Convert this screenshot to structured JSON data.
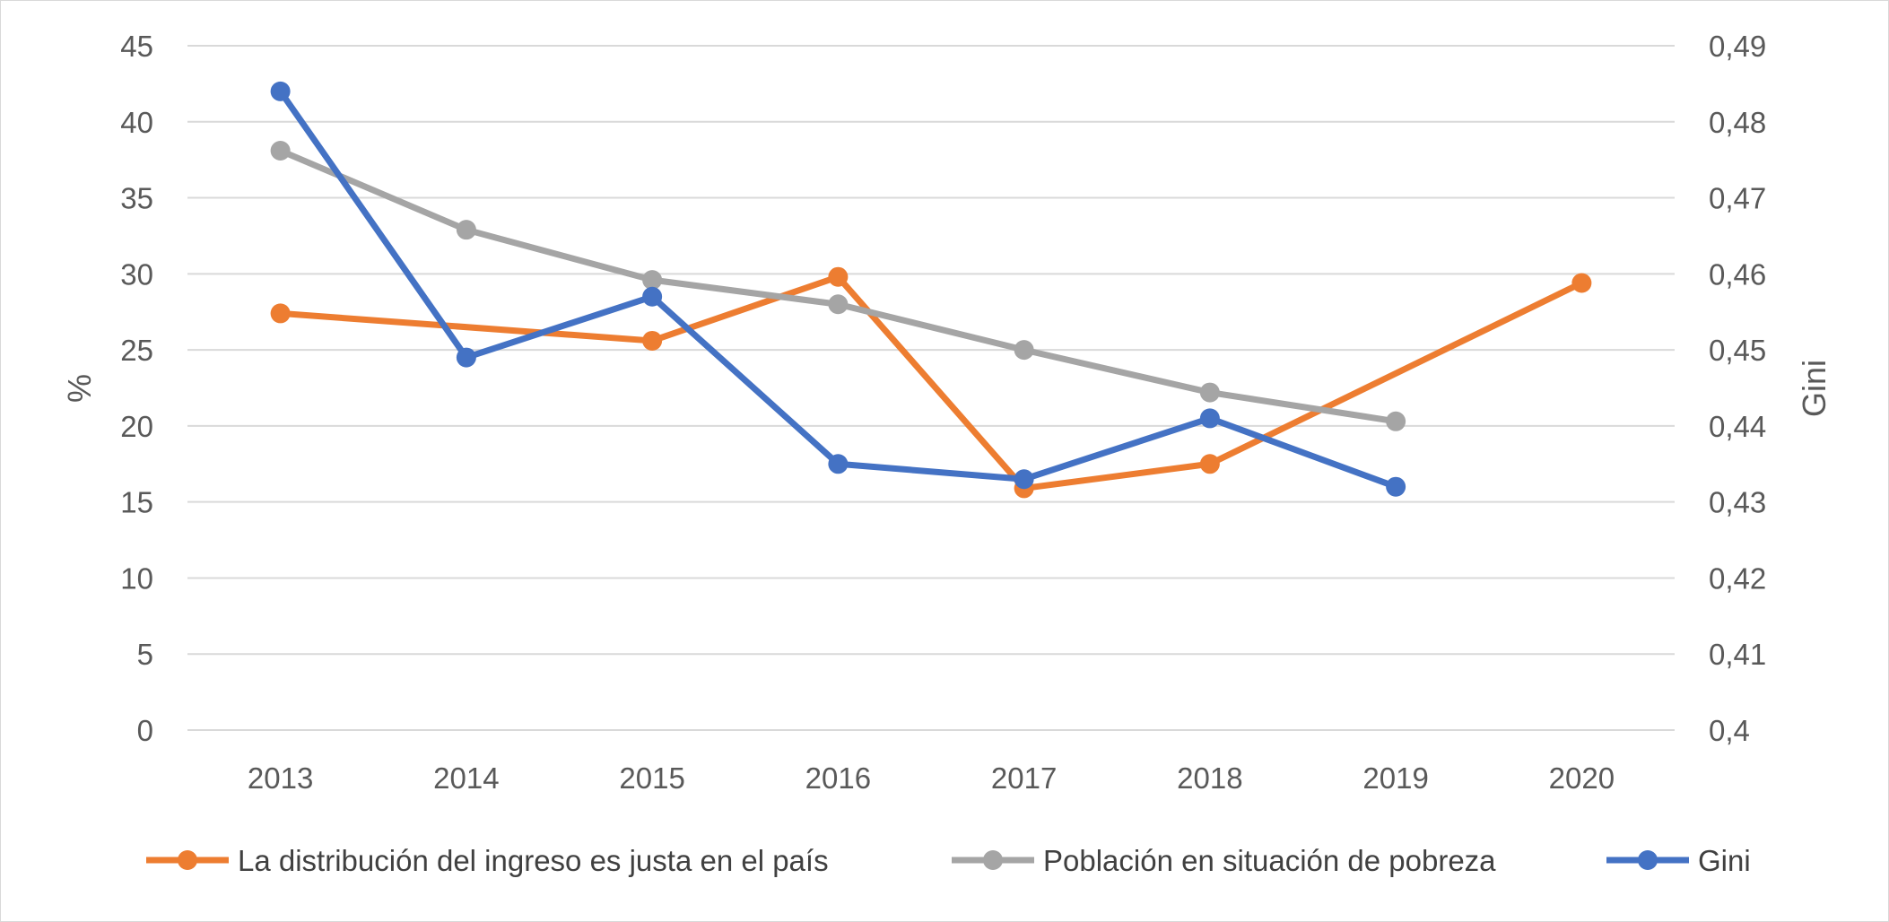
{
  "chart_data": {
    "type": "line",
    "title": "",
    "categories": [
      "2013",
      "2014",
      "2015",
      "2016",
      "2017",
      "2018",
      "2019",
      "2020"
    ],
    "y_left": {
      "label": "%",
      "ylim": [
        0,
        45
      ],
      "ticks": [
        "0",
        "5",
        "10",
        "15",
        "20",
        "25",
        "30",
        "35",
        "40",
        "45"
      ]
    },
    "y_right": {
      "label": "Gini",
      "ylim": [
        0.4,
        0.49
      ],
      "ticks": [
        "0,4",
        "0,41",
        "0,42",
        "0,43",
        "0,44",
        "0,45",
        "0,46",
        "0,47",
        "0,48",
        "0,49"
      ]
    },
    "grid": true,
    "legend_position": "bottom",
    "series": [
      {
        "name": "La distribución del ingreso es justa en el país",
        "axis": "left",
        "color": "#ED7D31",
        "values": [
          27.4,
          null,
          25.6,
          29.8,
          15.9,
          17.5,
          null,
          29.4
        ]
      },
      {
        "name": "Población en situación de pobreza",
        "axis": "left",
        "color": "#A5A5A5",
        "values": [
          38.1,
          32.9,
          29.6,
          28.0,
          25.0,
          22.2,
          20.3,
          null
        ]
      },
      {
        "name": "Gini",
        "axis": "right",
        "color": "#4472C4",
        "values": [
          0.484,
          0.449,
          0.457,
          0.435,
          0.433,
          0.441,
          0.432,
          null
        ]
      }
    ]
  }
}
